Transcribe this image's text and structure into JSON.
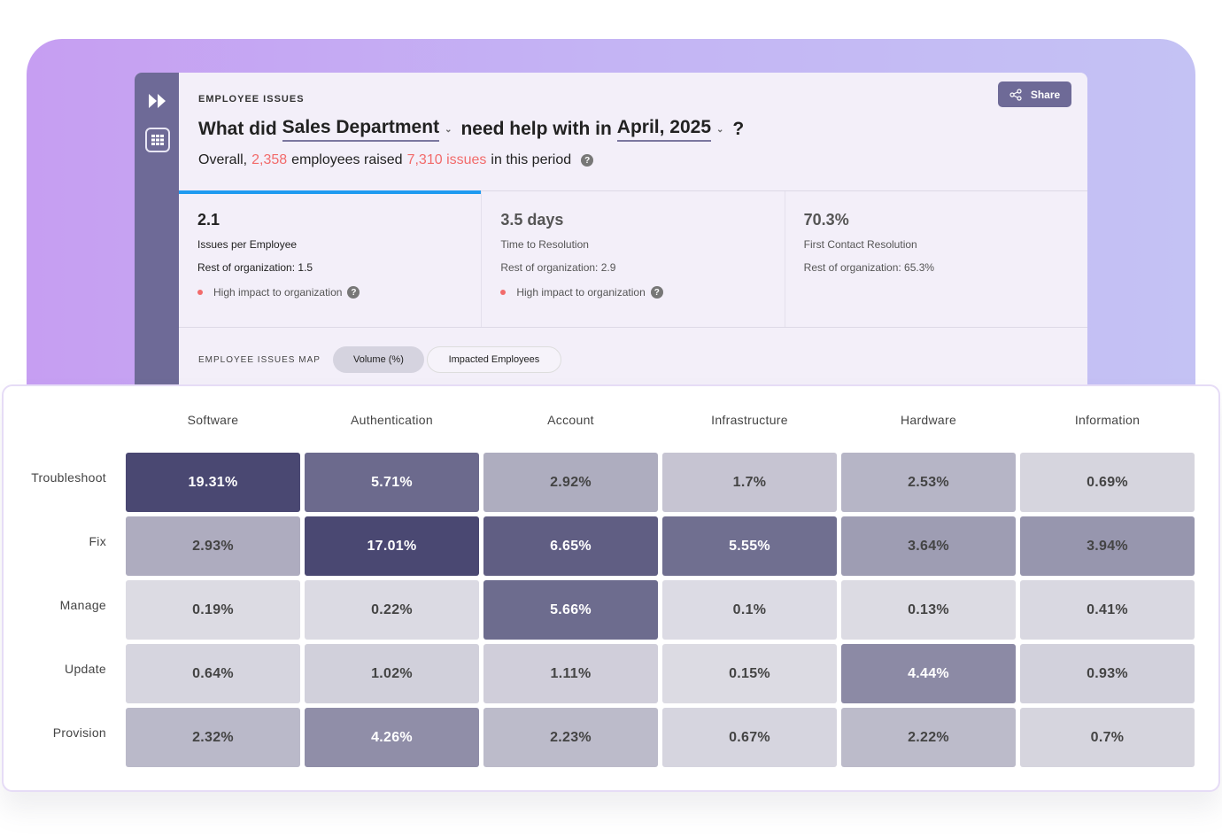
{
  "header": {
    "eyebrow": "EMPLOYEE ISSUES",
    "q_prefix": "What did",
    "department": "Sales Department",
    "q_middle": "need help with in",
    "period": "April, 2025",
    "q_suffix": "?",
    "summary": {
      "pre": "Overall,",
      "employees": "2,358",
      "mid": "employees raised",
      "issues": "7,310 issues",
      "post": "in this period"
    },
    "share_label": "Share"
  },
  "metrics": [
    {
      "value": "2.1",
      "label": "Issues per Employee",
      "rest": "Rest of organization: 1.5",
      "impact": "High impact to organization"
    },
    {
      "value": "3.5 days",
      "label": "Time to Resolution",
      "rest": "Rest of organization: 2.9",
      "impact": "High impact to organization"
    },
    {
      "value": "70.3%",
      "label": "First Contact Resolution",
      "rest": "Rest of organization: 65.3%"
    }
  ],
  "map": {
    "title": "EMPLOYEE ISSUES MAP",
    "toggles": [
      {
        "label": "Volume (%)",
        "active": true
      },
      {
        "label": "Impacted Employees",
        "active": false
      }
    ]
  },
  "colors": {
    "accent": "#1e9af0",
    "highlight": "#f26b6b",
    "brand": "#6e6a97",
    "heat_low": "#dddce4",
    "heat_high": "#4a4872"
  },
  "heatmap": {
    "columns": [
      "Software",
      "Authentication",
      "Account",
      "Infrastructure",
      "Hardware",
      "Information"
    ],
    "rows": [
      {
        "label": "Troubleshoot",
        "values": [
          "19.31%",
          "5.71%",
          "2.92%",
          "1.7%",
          "2.53%",
          "0.69%"
        ]
      },
      {
        "label": "Fix",
        "values": [
          "2.93%",
          "17.01%",
          "6.65%",
          "5.55%",
          "3.64%",
          "3.94%"
        ]
      },
      {
        "label": "Manage",
        "values": [
          "0.19%",
          "0.22%",
          "5.66%",
          "0.1%",
          "0.13%",
          "0.41%"
        ]
      },
      {
        "label": "Update",
        "values": [
          "0.64%",
          "1.02%",
          "1.11%",
          "0.15%",
          "4.44%",
          "0.93%"
        ]
      },
      {
        "label": "Provision",
        "values": [
          "2.32%",
          "4.26%",
          "2.23%",
          "0.67%",
          "2.22%",
          "0.7%"
        ]
      }
    ]
  }
}
